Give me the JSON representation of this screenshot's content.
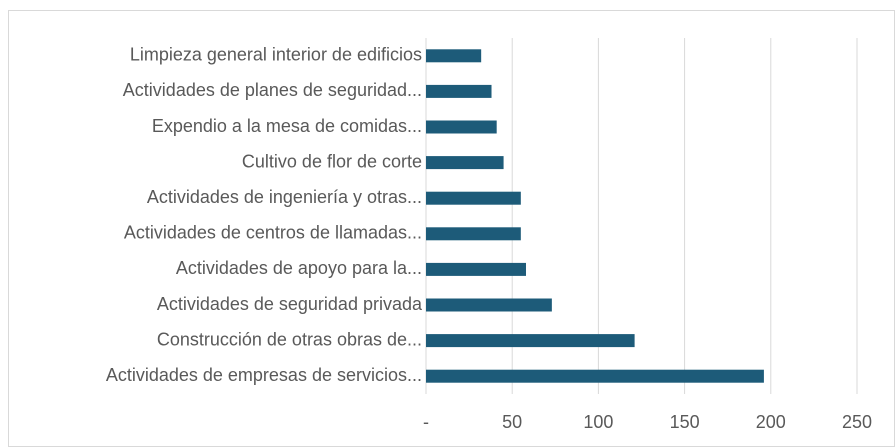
{
  "chart_data": {
    "type": "bar",
    "orientation": "horizontal",
    "categories": [
      "Limpieza general interior de edificios",
      "Actividades de planes de seguridad...",
      "Expendio a la mesa de comidas...",
      "Cultivo de flor de corte",
      "Actividades de ingeniería y otras...",
      "Actividades de centros de llamadas...",
      "Actividades de apoyo para la...",
      "Actividades de seguridad privada",
      "Construcción de otras obras de...",
      "Actividades de empresas de servicios..."
    ],
    "values": [
      32,
      38,
      41,
      45,
      55,
      55,
      58,
      73,
      121,
      196
    ],
    "color": "#1d5b79",
    "xlim": [
      0,
      250
    ],
    "xticks": [
      {
        "value": 0,
        "label": "-"
      },
      50,
      100,
      150,
      200,
      250
    ],
    "grid": true
  }
}
